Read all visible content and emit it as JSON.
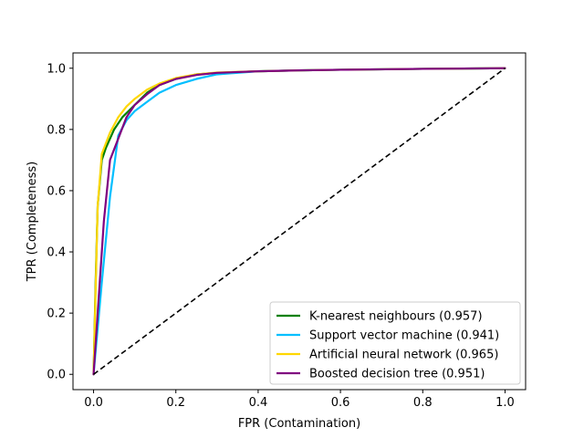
{
  "chart_data": {
    "type": "line",
    "title": "",
    "xlabel": "FPR (Contamination)",
    "ylabel": "TPR (Completeness)",
    "xlim": [
      -0.05,
      1.05
    ],
    "ylim": [
      -0.05,
      1.05
    ],
    "xticks": [
      "0.0",
      "0.2",
      "0.4",
      "0.6",
      "0.8",
      "1.0"
    ],
    "yticks": [
      "0.0",
      "0.2",
      "0.4",
      "0.6",
      "0.8",
      "1.0"
    ],
    "grid": false,
    "legend_position": "lower-right",
    "series": [
      {
        "name": "K-nearest neighbours (0.957)",
        "color": "#008000",
        "x": [
          0,
          0.005,
          0.01,
          0.02,
          0.03,
          0.05,
          0.07,
          0.1,
          0.13,
          0.16,
          0.2,
          0.25,
          0.3,
          0.4,
          0.5,
          0.6,
          0.8,
          1.0
        ],
        "y": [
          0,
          0.3,
          0.55,
          0.7,
          0.74,
          0.8,
          0.84,
          0.88,
          0.92,
          0.945,
          0.965,
          0.98,
          0.985,
          0.99,
          0.993,
          0.995,
          0.998,
          1.0
        ]
      },
      {
        "name": "Support vector machine (0.941)",
        "color": "#00BFFF",
        "x": [
          0,
          0.02,
          0.04,
          0.06,
          0.08,
          0.1,
          0.13,
          0.16,
          0.2,
          0.25,
          0.3,
          0.4,
          0.5,
          0.6,
          0.8,
          1.0
        ],
        "y": [
          0,
          0.3,
          0.58,
          0.78,
          0.83,
          0.86,
          0.89,
          0.92,
          0.945,
          0.965,
          0.98,
          0.99,
          0.993,
          0.995,
          0.998,
          1.0
        ]
      },
      {
        "name": "Artificial neural network (0.965)",
        "color": "#FFD700",
        "x": [
          0,
          0.01,
          0.02,
          0.04,
          0.06,
          0.08,
          0.1,
          0.13,
          0.16,
          0.2,
          0.25,
          0.3,
          0.4,
          0.5,
          0.6,
          0.8,
          1.0
        ],
        "y": [
          0,
          0.55,
          0.72,
          0.79,
          0.84,
          0.875,
          0.9,
          0.93,
          0.95,
          0.968,
          0.98,
          0.986,
          0.99,
          0.993,
          0.995,
          0.998,
          1.0
        ]
      },
      {
        "name": "Boosted decision tree (0.951)",
        "color": "#800080",
        "x": [
          0,
          0.01,
          0.025,
          0.04,
          0.06,
          0.08,
          0.1,
          0.13,
          0.16,
          0.2,
          0.25,
          0.3,
          0.4,
          0.5,
          0.6,
          0.8,
          1.0
        ],
        "y": [
          0,
          0.2,
          0.5,
          0.7,
          0.77,
          0.84,
          0.88,
          0.915,
          0.945,
          0.965,
          0.978,
          0.985,
          0.99,
          0.993,
          0.995,
          0.998,
          1.0
        ]
      }
    ],
    "reference_line": {
      "x": [
        0,
        1
      ],
      "y": [
        0,
        1
      ],
      "color": "#000000",
      "style": "dashed"
    }
  }
}
